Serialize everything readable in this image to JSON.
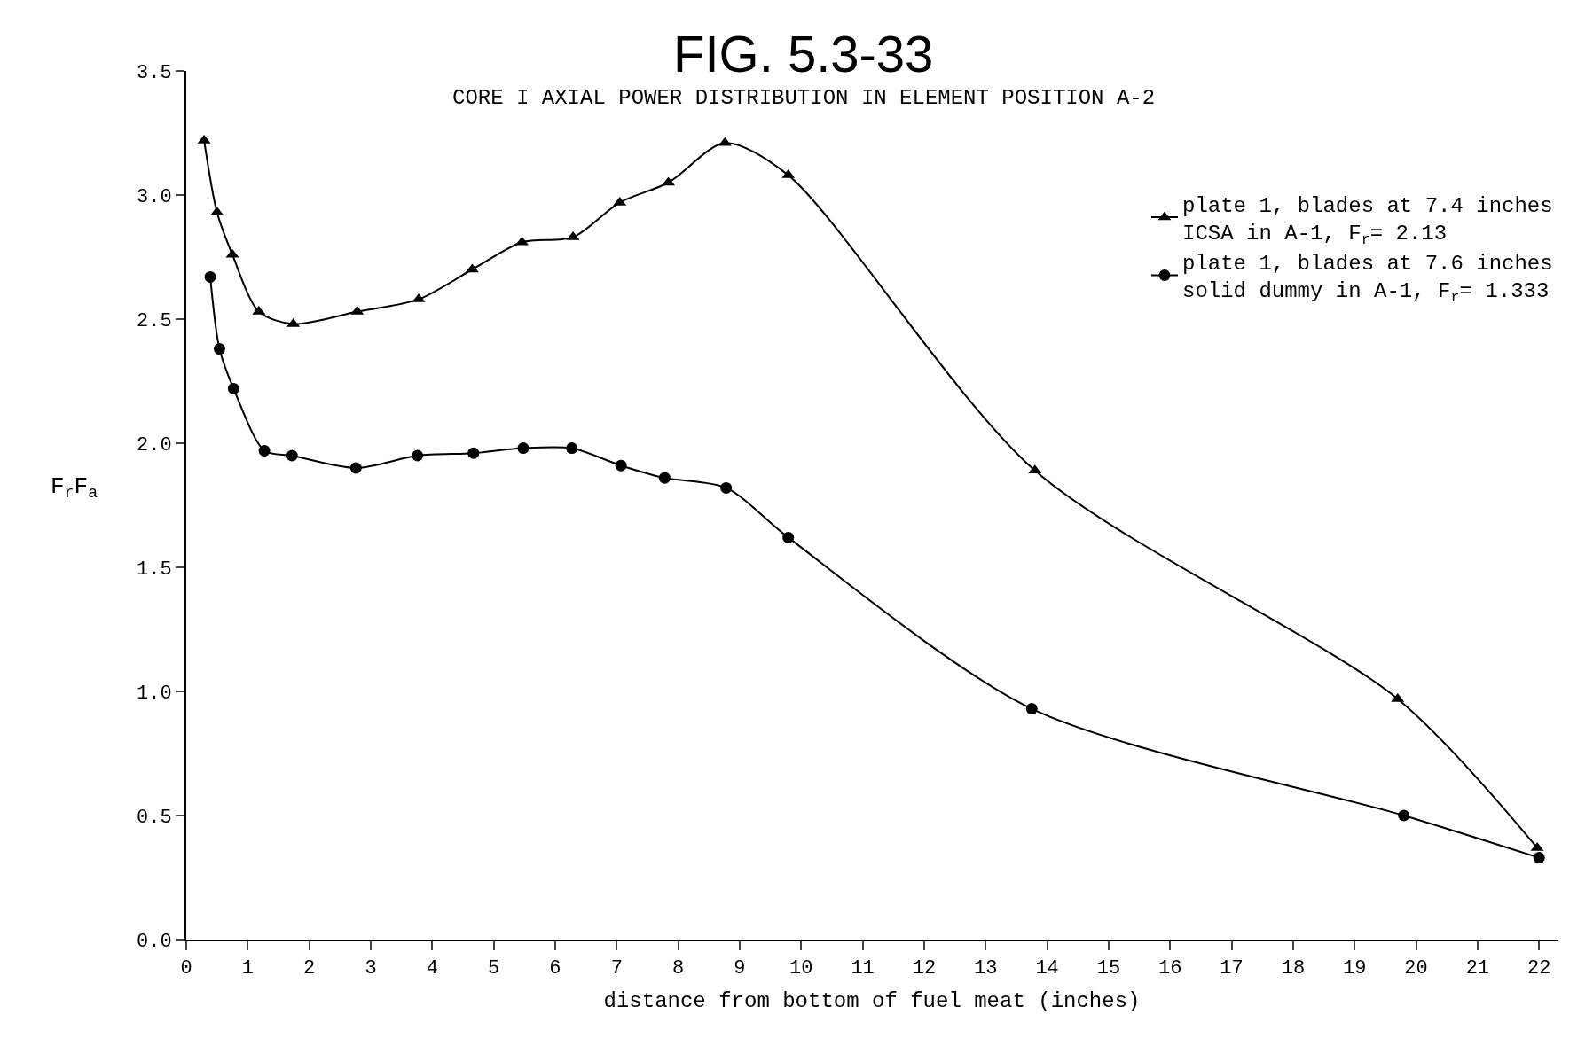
{
  "chart_data": {
    "type": "line",
    "title": "FIG. 5.3-33",
    "subtitle": "CORE I AXIAL POWER DISTRIBUTION IN ELEMENT POSITION A-2",
    "xlabel": "distance from bottom of fuel meat (inches)",
    "ylabel": "F$_{r}$F$_{a}$",
    "xlim": [
      0,
      22.3
    ],
    "ylim": [
      0,
      3.5
    ],
    "xticks": [
      0,
      1,
      2,
      3,
      4,
      5,
      6,
      7,
      8,
      9,
      10,
      11,
      12,
      13,
      14,
      15,
      16,
      17,
      18,
      19,
      20,
      21,
      22
    ],
    "yticks": [
      {
        "value": 0,
        "label": "0.0"
      },
      {
        "value": 0.5,
        "label": "0.5"
      },
      {
        "value": 1,
        "label": "1.0"
      },
      {
        "value": 1.5,
        "label": "1.5"
      },
      {
        "value": 2,
        "label": "2.0"
      },
      {
        "value": 2.5,
        "label": "2.5"
      },
      {
        "value": 3,
        "label": "3.0"
      },
      {
        "value": 3.5,
        "label": "3.5"
      }
    ],
    "legend": "top right",
    "line_style": "solid",
    "series": [
      {
        "name": "plate 1, blades at 7.4 inches\nICSA in A-1, F$_{r}$= 2.13",
        "color": "#000000",
        "marker": "triangle",
        "x": [
          0.29,
          0.5,
          0.75,
          1.18,
          1.74,
          2.78,
          3.78,
          4.65,
          5.46,
          6.29,
          7.05,
          7.84,
          8.76,
          9.79,
          13.8,
          19.7,
          21.97
        ],
        "values": [
          3.22,
          2.93,
          2.76,
          2.53,
          2.48,
          2.53,
          2.58,
          2.7,
          2.81,
          2.83,
          2.97,
          3.05,
          3.21,
          3.08,
          1.89,
          0.97,
          0.37
        ]
      },
      {
        "name": "plate 1, blades at 7.6 inches\nsolid dummy in A-1, F$_{r}$= 1.333",
        "color": "#000000",
        "marker": "circle",
        "x": [
          0.39,
          0.54,
          0.77,
          1.27,
          1.72,
          2.76,
          3.76,
          4.67,
          5.48,
          6.27,
          7.07,
          7.78,
          8.78,
          9.79,
          13.75,
          19.8,
          22.0
        ],
        "values": [
          2.67,
          2.38,
          2.22,
          1.97,
          1.95,
          1.9,
          1.95,
          1.96,
          1.98,
          1.98,
          1.91,
          1.86,
          1.82,
          1.62,
          0.93,
          0.5,
          0.33
        ]
      }
    ]
  }
}
